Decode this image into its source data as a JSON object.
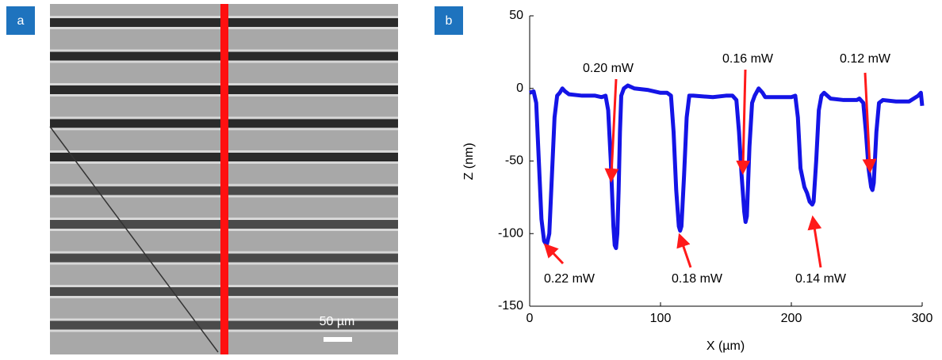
{
  "panel_a": {
    "label": "a",
    "scale_bar": "50 µm"
  },
  "chart_data": {
    "type": "line",
    "panel_label": "b",
    "x_label": "X (µm)",
    "y_label": "Z (nm)",
    "xlim": [
      0,
      300
    ],
    "xticks": [
      0,
      100,
      200,
      300
    ],
    "ylim": [
      -150,
      50
    ],
    "yticks": [
      -150,
      -100,
      -50,
      0,
      50
    ],
    "grid": false,
    "series": [
      {
        "color": "#1414e6",
        "x": [
          0,
          3,
          5,
          7,
          9,
          11,
          13,
          15,
          17,
          19,
          21,
          23,
          25,
          27,
          30,
          40,
          50,
          55,
          58,
          60,
          62,
          64,
          65,
          66,
          67,
          68,
          69,
          70,
          72,
          75,
          80,
          90,
          100,
          105,
          108,
          110,
          112,
          114,
          115,
          116,
          118,
          120,
          122,
          125,
          140,
          150,
          155,
          158,
          160,
          162,
          164,
          165,
          166,
          168,
          170,
          172,
          175,
          178,
          180,
          200,
          203,
          205,
          207,
          210,
          212,
          214,
          216,
          217,
          219,
          221,
          223,
          225,
          230,
          240,
          250,
          252,
          255,
          257,
          259,
          261,
          262,
          263,
          265,
          267,
          270,
          280,
          290,
          297,
          299,
          300
        ],
        "values": [
          -3,
          -2,
          -10,
          -50,
          -90,
          -105,
          -108,
          -100,
          -60,
          -20,
          -5,
          -3,
          0,
          -2,
          -4,
          -5,
          -5,
          -6,
          -5,
          -15,
          -50,
          -95,
          -108,
          -110,
          -100,
          -70,
          -30,
          -5,
          0,
          2,
          0,
          -1,
          -3,
          -3,
          -5,
          -30,
          -70,
          -95,
          -98,
          -95,
          -60,
          -20,
          -5,
          -5,
          -6,
          -5,
          -5,
          -8,
          -30,
          -60,
          -85,
          -92,
          -88,
          -40,
          -10,
          -5,
          0,
          -3,
          -6,
          -6,
          -5,
          -20,
          -55,
          -68,
          -72,
          -78,
          -80,
          -78,
          -50,
          -15,
          -5,
          -3,
          -7,
          -8,
          -8,
          -7,
          -10,
          -30,
          -55,
          -68,
          -70,
          -65,
          -30,
          -10,
          -8,
          -9,
          -9,
          -5,
          -3,
          -12
        ]
      }
    ],
    "annotations": [
      "0.20 mW",
      "0.16 mW",
      "0.12 mW",
      "0.22 mW",
      "0.18 mW",
      "0.14 mW"
    ]
  }
}
